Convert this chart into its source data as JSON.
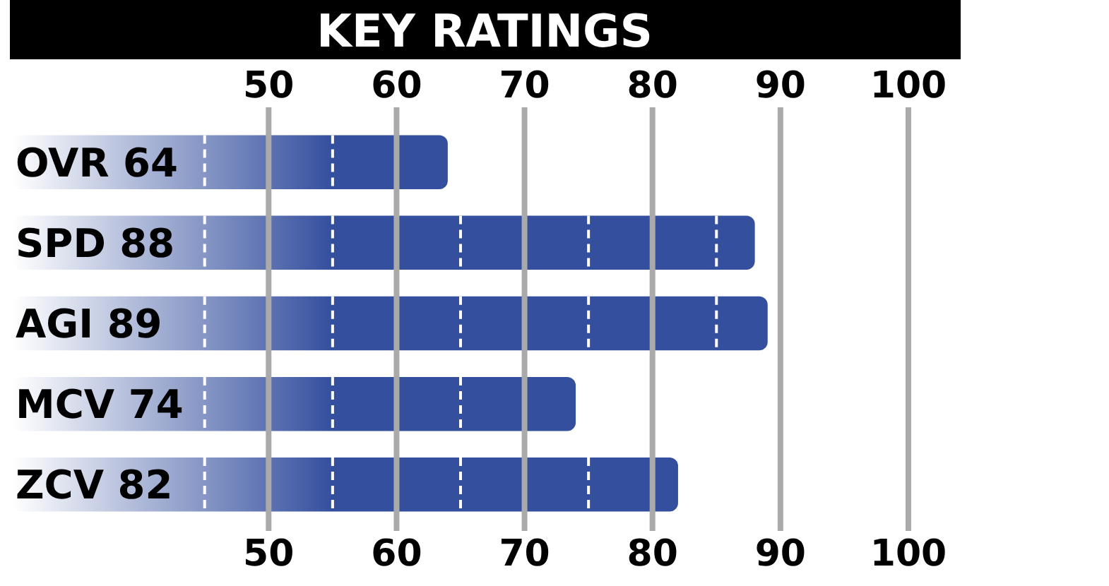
{
  "chart_data": {
    "type": "bar",
    "orientation": "horizontal",
    "title": "KEY RATINGS",
    "categories": [
      "OVR 64",
      "SPD 88",
      "AGI 89",
      "MCV 74",
      "ZCV 82"
    ],
    "values": [
      64,
      88,
      89,
      74,
      82
    ],
    "color": "#344f9e",
    "xlim": [
      30,
      100
    ],
    "xticks": [
      50,
      60,
      70,
      80,
      90,
      100
    ],
    "x2lim": [
      30,
      100
    ],
    "x2ticks": [
      50,
      60,
      70,
      80,
      90,
      100
    ],
    "grid": "x"
  }
}
